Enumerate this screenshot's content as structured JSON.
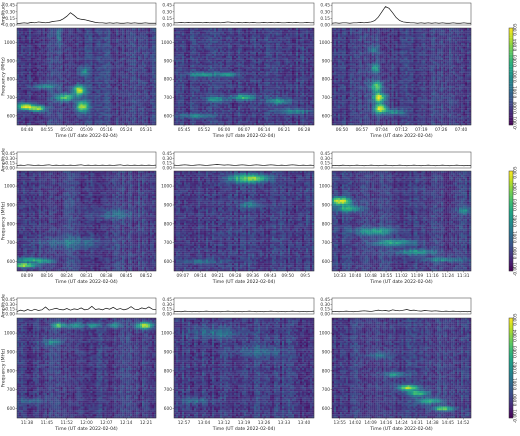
{
  "figure": {
    "shared": {
      "amp_ylabel": "Amplitude",
      "freq_ylabel": "Frequency (MHz)",
      "xlabel": "Time (UT date 2022-02-04)",
      "amp_ticks": [
        "0.45",
        "0.30",
        "0.15",
        "0.00"
      ],
      "freq_ticks": [
        "1000",
        "900",
        "800",
        "700",
        "600"
      ],
      "cb_ticks": [
        "0.005",
        "0.004",
        "0.003",
        "0.002",
        "0.001",
        "0.000",
        "-0.001"
      ]
    },
    "colorbar": {
      "min": -0.0012,
      "max": 0.005,
      "colormap": "viridis"
    }
  },
  "chart_data": [
    {
      "type": "heatmap",
      "time_ticks": [
        "04:48",
        "04:55",
        "05:02",
        "05:09",
        "05:16",
        "05:24",
        "05:31"
      ],
      "freq_range": [
        550,
        1080
      ],
      "amp_ylim": [
        0,
        0.5
      ],
      "amplitude": [
        0.03,
        0.04,
        0.05,
        0.04,
        0.06,
        0.05,
        0.07,
        0.06,
        0.05,
        0.06,
        0.08,
        0.09,
        0.1,
        0.14,
        0.2,
        0.28,
        0.22,
        0.15,
        0.13,
        0.12,
        0.1,
        0.08,
        0.06,
        0.05,
        0.05,
        0.04,
        0.05,
        0.04,
        0.05,
        0.04,
        0.04,
        0.05,
        0.04,
        0.05,
        0.04,
        0.04,
        0.05,
        0.04,
        0.04,
        0.04
      ],
      "blobs": [
        {
          "t": 0.06,
          "f": 650,
          "w": 0.04,
          "h": 12,
          "a": 1.0
        },
        {
          "t": 0.15,
          "f": 640,
          "w": 0.04,
          "h": 12,
          "a": 0.85
        },
        {
          "t": 0.35,
          "f": 700,
          "w": 0.05,
          "h": 14,
          "a": 0.7
        },
        {
          "t": 0.45,
          "f": 740,
          "w": 0.03,
          "h": 18,
          "a": 1.0
        },
        {
          "t": 0.47,
          "f": 650,
          "w": 0.03,
          "h": 20,
          "a": 0.95
        },
        {
          "t": 0.48,
          "f": 840,
          "w": 0.02,
          "h": 18,
          "a": 0.45
        },
        {
          "t": 0.2,
          "f": 760,
          "w": 0.06,
          "h": 10,
          "a": 0.4
        },
        {
          "t": 0.3,
          "f": 1040,
          "w": 0.01,
          "h": 40,
          "a": 0.3
        }
      ]
    },
    {
      "type": "heatmap",
      "time_ticks": [
        "05:45",
        "05:52",
        "06:00",
        "06:07",
        "06:14",
        "06:21",
        "06:28"
      ],
      "freq_range": [
        550,
        1080
      ],
      "amp_ylim": [
        0,
        0.5
      ],
      "amplitude": [
        0.05,
        0.05,
        0.06,
        0.05,
        0.06,
        0.05,
        0.06,
        0.06,
        0.05,
        0.06,
        0.05,
        0.06,
        0.06,
        0.05,
        0.06,
        0.07,
        0.06,
        0.05,
        0.06,
        0.05,
        0.06,
        0.05,
        0.06,
        0.05,
        0.05,
        0.06,
        0.05,
        0.06,
        0.05,
        0.06,
        0.05,
        0.05,
        0.06,
        0.05,
        0.06,
        0.05,
        0.05,
        0.06,
        0.05,
        0.05
      ],
      "blobs": [
        {
          "t": 0.2,
          "f": 825,
          "w": 0.06,
          "h": 8,
          "a": 0.55
        },
        {
          "t": 0.38,
          "f": 825,
          "w": 0.05,
          "h": 8,
          "a": 0.5
        },
        {
          "t": 0.5,
          "f": 700,
          "w": 0.06,
          "h": 10,
          "a": 0.6
        },
        {
          "t": 0.3,
          "f": 690,
          "w": 0.05,
          "h": 10,
          "a": 0.45
        },
        {
          "t": 0.75,
          "f": 680,
          "w": 0.06,
          "h": 12,
          "a": 0.45
        },
        {
          "t": 0.85,
          "f": 625,
          "w": 0.08,
          "h": 10,
          "a": 0.4
        },
        {
          "t": 0.15,
          "f": 600,
          "w": 0.08,
          "h": 8,
          "a": 0.35
        }
      ]
    },
    {
      "type": "heatmap",
      "time_ticks": [
        "06:50",
        "06:57",
        "07:04",
        "07:12",
        "07:19",
        "07:26",
        "07:40"
      ],
      "freq_range": [
        550,
        1080
      ],
      "amp_ylim": [
        0,
        0.5
      ],
      "amplitude": [
        0.04,
        0.05,
        0.04,
        0.05,
        0.05,
        0.04,
        0.05,
        0.05,
        0.06,
        0.05,
        0.06,
        0.07,
        0.1,
        0.18,
        0.3,
        0.42,
        0.38,
        0.28,
        0.17,
        0.1,
        0.07,
        0.06,
        0.05,
        0.05,
        0.04,
        0.05,
        0.04,
        0.05,
        0.04,
        0.05,
        0.04,
        0.05,
        0.04,
        0.04,
        0.05,
        0.04,
        0.04,
        0.05,
        0.04,
        0.04
      ],
      "blobs": [
        {
          "t": 0.32,
          "f": 760,
          "w": 0.03,
          "h": 20,
          "a": 0.7
        },
        {
          "t": 0.34,
          "f": 700,
          "w": 0.03,
          "h": 16,
          "a": 1.0
        },
        {
          "t": 0.35,
          "f": 640,
          "w": 0.03,
          "h": 18,
          "a": 1.0
        },
        {
          "t": 0.31,
          "f": 860,
          "w": 0.02,
          "h": 16,
          "a": 0.5
        },
        {
          "t": 0.3,
          "f": 960,
          "w": 0.02,
          "h": 14,
          "a": 0.35
        },
        {
          "t": 0.45,
          "f": 620,
          "w": 0.05,
          "h": 10,
          "a": 0.4
        }
      ]
    },
    {
      "type": "heatmap",
      "time_ticks": [
        "08:09",
        "08:16",
        "08:24",
        "08:31",
        "08:38",
        "08:45",
        "08:52"
      ],
      "freq_range": [
        550,
        1080
      ],
      "amp_ylim": [
        0,
        0.5
      ],
      "amplitude": [
        0.08,
        0.09,
        0.08,
        0.1,
        0.09,
        0.08,
        0.09,
        0.08,
        0.09,
        0.1,
        0.08,
        0.09,
        0.08,
        0.09,
        0.08,
        0.09,
        0.08,
        0.09,
        0.1,
        0.08,
        0.09,
        0.08,
        0.09,
        0.08,
        0.09,
        0.08,
        0.09,
        0.08,
        0.09,
        0.1,
        0.08,
        0.09,
        0.08,
        0.09,
        0.08,
        0.09,
        0.08,
        0.09,
        0.08,
        0.09
      ],
      "blobs": [
        {
          "t": 0.05,
          "f": 580,
          "w": 0.06,
          "h": 8,
          "a": 0.9
        },
        {
          "t": 0.08,
          "f": 610,
          "w": 0.08,
          "h": 8,
          "a": 0.55
        },
        {
          "t": 0.2,
          "f": 600,
          "w": 0.06,
          "h": 8,
          "a": 0.4
        },
        {
          "t": 0.4,
          "f": 700,
          "w": 0.15,
          "h": 20,
          "a": 0.25
        },
        {
          "t": 0.7,
          "f": 850,
          "w": 0.1,
          "h": 20,
          "a": 0.2
        }
      ]
    },
    {
      "type": "heatmap",
      "time_ticks": [
        "09:07",
        "09:14",
        "09:21",
        "09:28",
        "09:36",
        "09:43",
        "09:50",
        "09:5"
      ],
      "freq_range": [
        550,
        1080
      ],
      "amp_ylim": [
        0,
        0.5
      ],
      "amplitude": [
        0.09,
        0.08,
        0.09,
        0.1,
        0.09,
        0.08,
        0.09,
        0.1,
        0.09,
        0.08,
        0.09,
        0.1,
        0.11,
        0.1,
        0.09,
        0.1,
        0.09,
        0.08,
        0.09,
        0.1,
        0.09,
        0.08,
        0.09,
        0.1,
        0.09,
        0.08,
        0.09,
        0.1,
        0.09,
        0.08,
        0.09,
        0.08,
        0.09,
        0.1,
        0.09,
        0.08,
        0.09,
        0.08,
        0.09,
        0.08
      ],
      "blobs": [
        {
          "t": 0.5,
          "f": 1040,
          "w": 0.08,
          "h": 16,
          "a": 0.6
        },
        {
          "t": 0.6,
          "f": 1040,
          "w": 0.06,
          "h": 14,
          "a": 0.45
        },
        {
          "t": 0.55,
          "f": 900,
          "w": 0.05,
          "h": 14,
          "a": 0.3
        },
        {
          "t": 0.2,
          "f": 600,
          "w": 0.1,
          "h": 10,
          "a": 0.25
        }
      ]
    },
    {
      "type": "heatmap",
      "time_ticks": [
        "10:33",
        "10:40",
        "10:48",
        "10:55",
        "11:02",
        "11:09",
        "11:16",
        "11:24",
        "11:31"
      ],
      "freq_range": [
        550,
        1080
      ],
      "amp_ylim": [
        0,
        0.5
      ],
      "amplitude": [
        0.07,
        0.08,
        0.07,
        0.09,
        0.08,
        0.07,
        0.08,
        0.09,
        0.08,
        0.07,
        0.08,
        0.09,
        0.08,
        0.07,
        0.08,
        0.09,
        0.08,
        0.07,
        0.08,
        0.09,
        0.08,
        0.07,
        0.08,
        0.09,
        0.08,
        0.07,
        0.08,
        0.09,
        0.08,
        0.07,
        0.08,
        0.09,
        0.08,
        0.07,
        0.08,
        0.09,
        0.08,
        0.07,
        0.08,
        0.07
      ],
      "blobs": [
        {
          "t": 0.06,
          "f": 920,
          "w": 0.05,
          "h": 14,
          "a": 1.0
        },
        {
          "t": 0.12,
          "f": 880,
          "w": 0.06,
          "h": 12,
          "a": 0.6
        },
        {
          "t": 0.3,
          "f": 760,
          "w": 0.1,
          "h": 14,
          "a": 0.5
        },
        {
          "t": 0.45,
          "f": 700,
          "w": 0.1,
          "h": 12,
          "a": 0.5
        },
        {
          "t": 0.6,
          "f": 650,
          "w": 0.1,
          "h": 10,
          "a": 0.45
        },
        {
          "t": 0.8,
          "f": 610,
          "w": 0.1,
          "h": 8,
          "a": 0.4
        },
        {
          "t": 0.95,
          "f": 870,
          "w": 0.03,
          "h": 12,
          "a": 0.4
        }
      ]
    },
    {
      "type": "heatmap",
      "time_ticks": [
        "11:38",
        "11:45",
        "11:52",
        "12:00",
        "12:07",
        "12:14",
        "12:21"
      ],
      "freq_range": [
        550,
        1080
      ],
      "amp_ylim": [
        0,
        0.5
      ],
      "amplitude": [
        0.08,
        0.12,
        0.09,
        0.14,
        0.1,
        0.15,
        0.11,
        0.13,
        0.22,
        0.12,
        0.15,
        0.18,
        0.14,
        0.13,
        0.17,
        0.12,
        0.16,
        0.14,
        0.19,
        0.13,
        0.15,
        0.24,
        0.14,
        0.16,
        0.13,
        0.18,
        0.15,
        0.21,
        0.14,
        0.17,
        0.13,
        0.16,
        0.23,
        0.15,
        0.14,
        0.19,
        0.16,
        0.22,
        0.15,
        0.13
      ],
      "blobs": [
        {
          "t": 0.3,
          "f": 1040,
          "w": 0.03,
          "h": 10,
          "a": 0.7
        },
        {
          "t": 0.42,
          "f": 1040,
          "w": 0.04,
          "h": 10,
          "a": 0.5
        },
        {
          "t": 0.55,
          "f": 1040,
          "w": 0.03,
          "h": 10,
          "a": 0.5
        },
        {
          "t": 0.7,
          "f": 1040,
          "w": 0.03,
          "h": 10,
          "a": 0.45
        },
        {
          "t": 0.92,
          "f": 1040,
          "w": 0.04,
          "h": 12,
          "a": 0.95
        },
        {
          "t": 0.25,
          "f": 950,
          "w": 0.05,
          "h": 14,
          "a": 0.3
        },
        {
          "t": 0.1,
          "f": 640,
          "w": 0.06,
          "h": 10,
          "a": 0.25
        }
      ]
    },
    {
      "type": "heatmap",
      "time_ticks": [
        "12:57",
        "13:04",
        "13:12",
        "13:19",
        "13:26",
        "13:33",
        "13:40"
      ],
      "freq_range": [
        550,
        1080
      ],
      "amp_ylim": [
        0,
        0.5
      ],
      "amplitude": [
        0.07,
        0.08,
        0.07,
        0.09,
        0.08,
        0.07,
        0.08,
        0.07,
        0.08,
        0.09,
        0.08,
        0.07,
        0.08,
        0.07,
        0.08,
        0.09,
        0.08,
        0.07,
        0.08,
        0.07,
        0.08,
        0.09,
        0.08,
        0.07,
        0.08,
        0.07,
        0.08,
        0.09,
        0.08,
        0.07,
        0.08,
        0.07,
        0.08,
        0.09,
        0.08,
        0.07,
        0.08,
        0.07,
        0.08,
        0.09
      ],
      "blobs": [
        {
          "t": 0.3,
          "f": 1000,
          "w": 0.12,
          "h": 20,
          "a": 0.25
        },
        {
          "t": 0.6,
          "f": 900,
          "w": 0.12,
          "h": 20,
          "a": 0.2
        },
        {
          "t": 0.15,
          "f": 640,
          "w": 0.08,
          "h": 10,
          "a": 0.25
        }
      ]
    },
    {
      "type": "heatmap",
      "time_ticks": [
        "13:55",
        "14:02",
        "14:09",
        "14:16",
        "14:24",
        "14:31",
        "14:38",
        "14:45",
        "14:52"
      ],
      "freq_range": [
        550,
        1080
      ],
      "amp_ylim": [
        0,
        0.5
      ],
      "amplitude": [
        0.07,
        0.08,
        0.07,
        0.08,
        0.09,
        0.08,
        0.07,
        0.08,
        0.09,
        0.1,
        0.09,
        0.08,
        0.1,
        0.12,
        0.1,
        0.11,
        0.09,
        0.13,
        0.11,
        0.1,
        0.12,
        0.14,
        0.11,
        0.12,
        0.1,
        0.09,
        0.11,
        0.1,
        0.09,
        0.1,
        0.09,
        0.08,
        0.09,
        0.08,
        0.09,
        0.08,
        0.07,
        0.08,
        0.07,
        0.08
      ],
      "blobs": [
        {
          "t": 0.55,
          "f": 710,
          "w": 0.05,
          "h": 10,
          "a": 0.85
        },
        {
          "t": 0.62,
          "f": 680,
          "w": 0.05,
          "h": 10,
          "a": 0.7
        },
        {
          "t": 0.7,
          "f": 640,
          "w": 0.06,
          "h": 10,
          "a": 0.6
        },
        {
          "t": 0.8,
          "f": 600,
          "w": 0.05,
          "h": 8,
          "a": 0.8
        },
        {
          "t": 0.45,
          "f": 780,
          "w": 0.05,
          "h": 10,
          "a": 0.4
        },
        {
          "t": 0.35,
          "f": 880,
          "w": 0.06,
          "h": 12,
          "a": 0.25
        }
      ]
    }
  ]
}
